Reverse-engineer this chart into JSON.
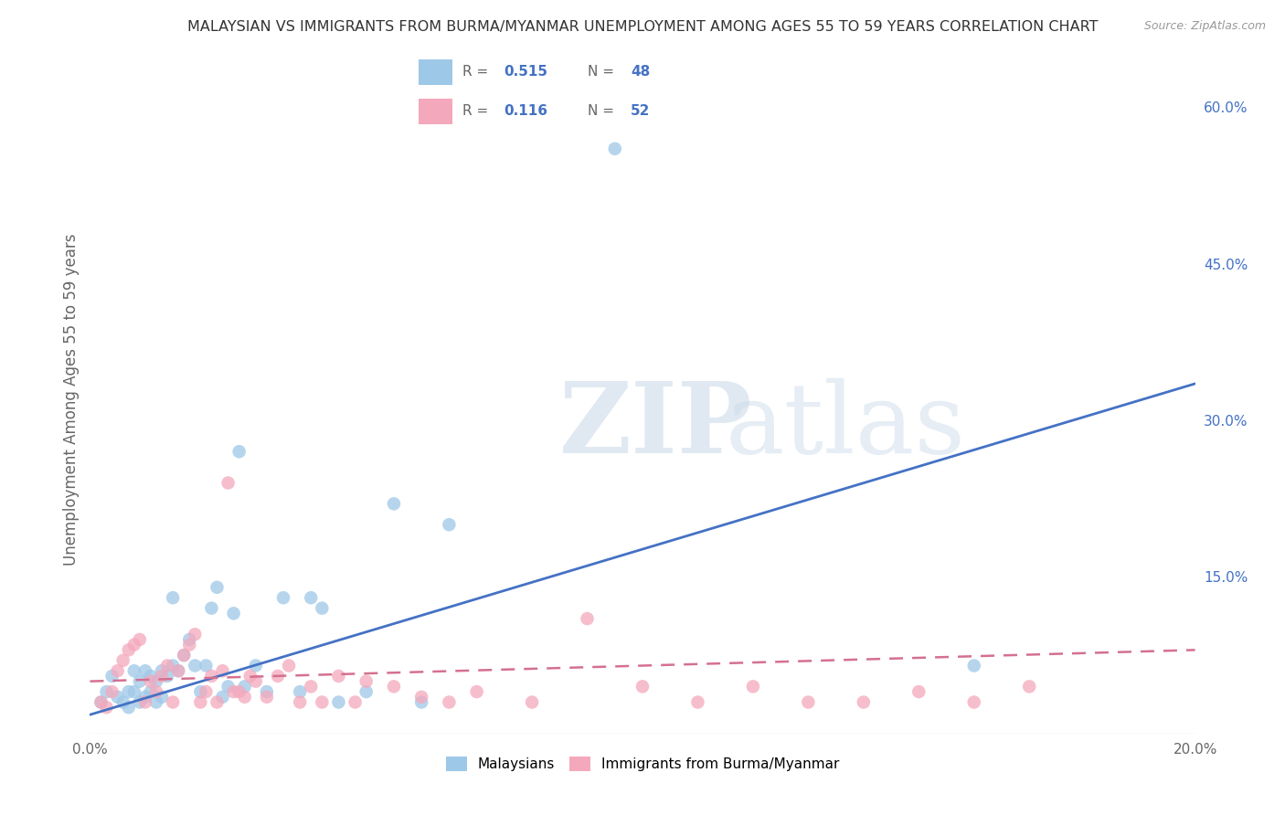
{
  "title": "MALAYSIAN VS IMMIGRANTS FROM BURMA/MYANMAR UNEMPLOYMENT AMONG AGES 55 TO 59 YEARS CORRELATION CHART",
  "source": "Source: ZipAtlas.com",
  "ylabel": "Unemployment Among Ages 55 to 59 years",
  "xlim": [
    0.0,
    0.2
  ],
  "ylim": [
    0.0,
    0.64
  ],
  "watermark_zip": "ZIP",
  "watermark_atlas": "atlas",
  "x_ticks": [
    0.0,
    0.05,
    0.1,
    0.15,
    0.2
  ],
  "x_tick_labels": [
    "0.0%",
    "",
    "",
    "",
    "20.0%"
  ],
  "y_ticks_right": [
    0.0,
    0.15,
    0.3,
    0.45,
    0.6
  ],
  "y_tick_labels_right": [
    "",
    "15.0%",
    "30.0%",
    "45.0%",
    "60.0%"
  ],
  "legend_R1": "0.515",
  "legend_N1": "48",
  "legend_R2": "0.116",
  "legend_N2": "52",
  "legend_label1": "Malaysians",
  "legend_label2": "Immigrants from Burma/Myanmar",
  "malaysians_x": [
    0.002,
    0.003,
    0.004,
    0.005,
    0.006,
    0.007,
    0.007,
    0.008,
    0.008,
    0.009,
    0.009,
    0.01,
    0.01,
    0.011,
    0.011,
    0.012,
    0.012,
    0.013,
    0.013,
    0.014,
    0.015,
    0.015,
    0.016,
    0.017,
    0.018,
    0.019,
    0.02,
    0.021,
    0.022,
    0.023,
    0.024,
    0.025,
    0.026,
    0.027,
    0.028,
    0.03,
    0.032,
    0.035,
    0.038,
    0.04,
    0.042,
    0.045,
    0.05,
    0.055,
    0.06,
    0.065,
    0.095,
    0.16
  ],
  "malaysians_y": [
    0.03,
    0.04,
    0.055,
    0.035,
    0.03,
    0.025,
    0.04,
    0.04,
    0.06,
    0.03,
    0.05,
    0.035,
    0.06,
    0.04,
    0.055,
    0.03,
    0.05,
    0.035,
    0.06,
    0.055,
    0.065,
    0.13,
    0.06,
    0.075,
    0.09,
    0.065,
    0.04,
    0.065,
    0.12,
    0.14,
    0.035,
    0.045,
    0.115,
    0.27,
    0.045,
    0.065,
    0.04,
    0.13,
    0.04,
    0.13,
    0.12,
    0.03,
    0.04,
    0.22,
    0.03,
    0.2,
    0.56,
    0.065
  ],
  "burma_x": [
    0.002,
    0.003,
    0.004,
    0.005,
    0.006,
    0.007,
    0.008,
    0.009,
    0.01,
    0.011,
    0.012,
    0.013,
    0.014,
    0.015,
    0.016,
    0.017,
    0.018,
    0.019,
    0.02,
    0.021,
    0.022,
    0.023,
    0.024,
    0.025,
    0.026,
    0.027,
    0.028,
    0.029,
    0.03,
    0.032,
    0.034,
    0.036,
    0.038,
    0.04,
    0.042,
    0.045,
    0.048,
    0.05,
    0.055,
    0.06,
    0.065,
    0.07,
    0.08,
    0.09,
    0.1,
    0.11,
    0.12,
    0.13,
    0.14,
    0.15,
    0.16,
    0.17
  ],
  "burma_y": [
    0.03,
    0.025,
    0.04,
    0.06,
    0.07,
    0.08,
    0.085,
    0.09,
    0.03,
    0.05,
    0.04,
    0.055,
    0.065,
    0.03,
    0.06,
    0.075,
    0.085,
    0.095,
    0.03,
    0.04,
    0.055,
    0.03,
    0.06,
    0.24,
    0.04,
    0.04,
    0.035,
    0.055,
    0.05,
    0.035,
    0.055,
    0.065,
    0.03,
    0.045,
    0.03,
    0.055,
    0.03,
    0.05,
    0.045,
    0.035,
    0.03,
    0.04,
    0.03,
    0.11,
    0.045,
    0.03,
    0.045,
    0.03,
    0.03,
    0.04,
    0.03,
    0.045
  ],
  "blue_line_x": [
    0.0,
    0.2
  ],
  "blue_line_y": [
    0.018,
    0.335
  ],
  "pink_line_x": [
    0.0,
    0.2
  ],
  "pink_line_y": [
    0.05,
    0.08
  ],
  "blue_color": "#4472c4",
  "pink_color": "#d47090",
  "scatter_blue": "#9ec8e8",
  "scatter_pink": "#f4a8bc",
  "background_color": "#ffffff",
  "grid_color": "#c8c8c8"
}
